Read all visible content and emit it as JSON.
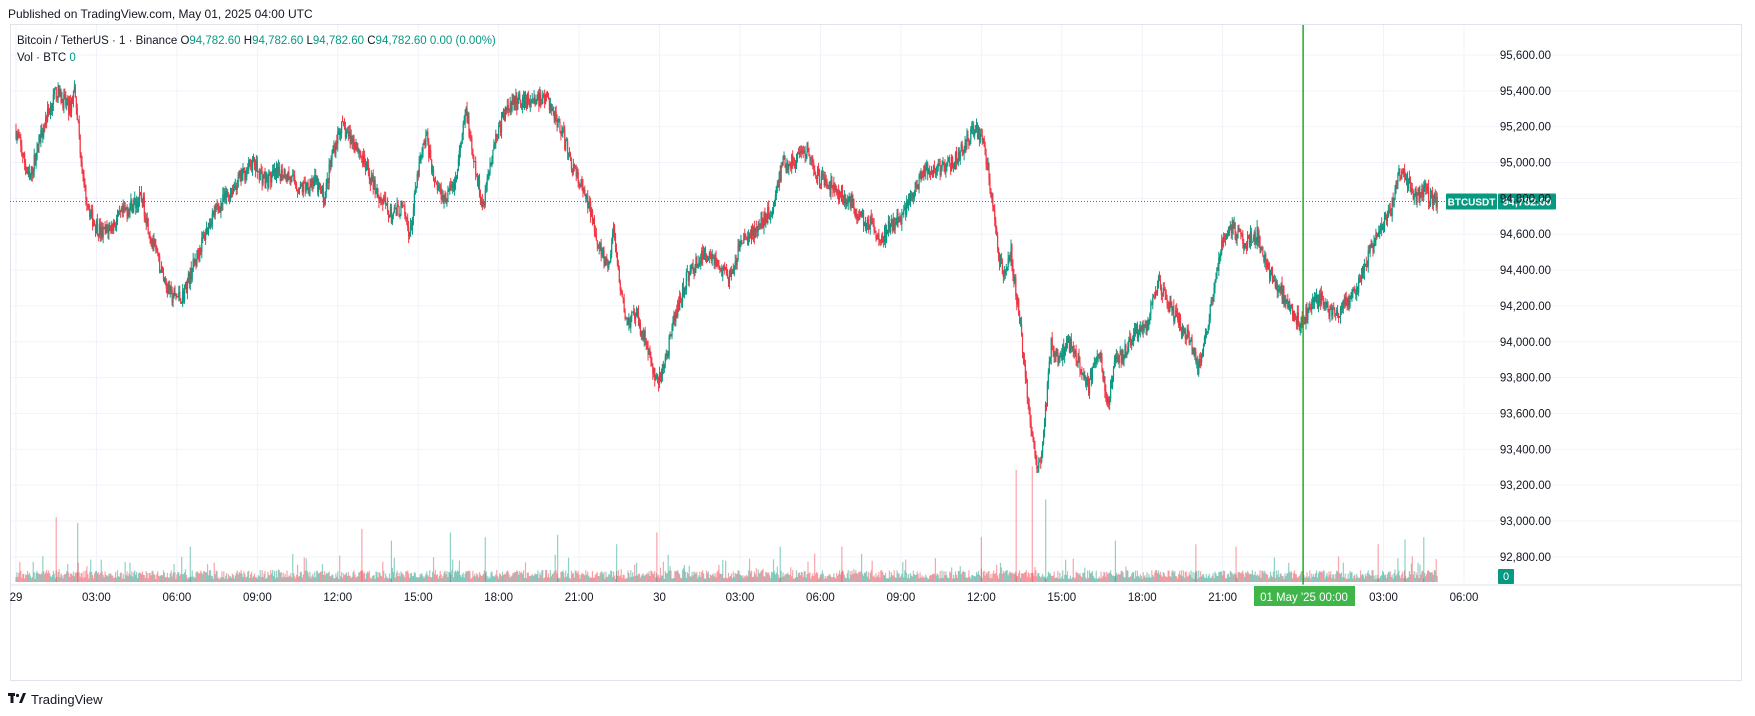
{
  "header": {
    "published": "Published on TradingView.com, May 01, 2025 04:00 UTC"
  },
  "legend": {
    "symbol": "Bitcoin / TetherUS · 1 · Binance",
    "o_label": "O",
    "o_value": "94,782.60",
    "h_label": "H",
    "h_value": "94,782.60",
    "l_label": "L",
    "l_value": "94,782.60",
    "c_label": "C",
    "c_value": "94,782.60",
    "change": "0.00 (0.00%)",
    "vol_label": "Vol · BTC",
    "vol_value": "0"
  },
  "price_tag": {
    "ticker": "BTCUSDT",
    "price": "94,782.60"
  },
  "volume_tag": "0",
  "date_marker": {
    "date": "01 May '25",
    "time": "00:00"
  },
  "footer": {
    "brand": "TradingView"
  },
  "colors": {
    "up": "#089981",
    "down": "#f23645",
    "grid": "#f0f3fa",
    "marker": "#22ab22"
  },
  "chart_data": {
    "type": "candlestick",
    "symbol": "BTCUSDT",
    "timeframe": "1",
    "ylim": [
      92650,
      95700
    ],
    "y_ticks": [
      95600,
      95400,
      95200,
      95000,
      94800,
      94600,
      94400,
      94200,
      94000,
      93800,
      93600,
      93400,
      93200,
      93000,
      92800
    ],
    "y_tick_labels": [
      "95,600.00",
      "95,400.00",
      "95,200.00",
      "95,000.00",
      "94,800.00",
      "94,600.00",
      "94,400.00",
      "94,200.00",
      "94,000.00",
      "93,800.00",
      "93,600.00",
      "93,400.00",
      "93,200.00",
      "93,000.00",
      "92,800.00"
    ],
    "x_ticks": [
      "29",
      "03:00",
      "06:00",
      "09:00",
      "12:00",
      "15:00",
      "18:00",
      "21:00",
      "30",
      "03:00",
      "06:00",
      "09:00",
      "12:00",
      "15:00",
      "18:00",
      "21:00",
      "03:00",
      "06:00"
    ],
    "x_tick_hours": [
      0,
      3,
      6,
      9,
      12,
      15,
      18,
      21,
      24,
      27,
      30,
      33,
      36,
      39,
      42,
      45,
      51,
      54
    ],
    "x_range_hours": [
      -0.05,
      55.0
    ],
    "last_price": 94782.6,
    "price_path": [
      [
        0.0,
        95180
      ],
      [
        0.5,
        94900
      ],
      [
        1.0,
        95200
      ],
      [
        1.5,
        95400
      ],
      [
        2.0,
        95300
      ],
      [
        2.2,
        95420
      ],
      [
        2.5,
        94900
      ],
      [
        2.8,
        94700
      ],
      [
        3.2,
        94600
      ],
      [
        3.6,
        94650
      ],
      [
        4.2,
        94750
      ],
      [
        4.7,
        94800
      ],
      [
        5.0,
        94600
      ],
      [
        5.4,
        94400
      ],
      [
        5.8,
        94250
      ],
      [
        6.2,
        94250
      ],
      [
        6.8,
        94500
      ],
      [
        7.3,
        94700
      ],
      [
        7.8,
        94800
      ],
      [
        8.3,
        94900
      ],
      [
        8.8,
        95000
      ],
      [
        9.3,
        94900
      ],
      [
        10.0,
        94950
      ],
      [
        10.6,
        94850
      ],
      [
        11.1,
        94900
      ],
      [
        11.5,
        94800
      ],
      [
        11.8,
        95050
      ],
      [
        12.1,
        95200
      ],
      [
        12.7,
        95100
      ],
      [
        13.1,
        94950
      ],
      [
        13.6,
        94800
      ],
      [
        14.0,
        94700
      ],
      [
        14.4,
        94750
      ],
      [
        14.7,
        94600
      ],
      [
        15.0,
        94950
      ],
      [
        15.3,
        95150
      ],
      [
        15.6,
        94900
      ],
      [
        16.0,
        94800
      ],
      [
        16.4,
        94900
      ],
      [
        16.8,
        95300
      ],
      [
        17.0,
        95050
      ],
      [
        17.4,
        94750
      ],
      [
        17.8,
        95100
      ],
      [
        18.3,
        95300
      ],
      [
        18.8,
        95350
      ],
      [
        19.3,
        95350
      ],
      [
        19.8,
        95350
      ],
      [
        20.3,
        95200
      ],
      [
        20.7,
        95000
      ],
      [
        21.1,
        94850
      ],
      [
        21.5,
        94700
      ],
      [
        21.8,
        94500
      ],
      [
        22.1,
        94400
      ],
      [
        22.3,
        94650
      ],
      [
        22.5,
        94300
      ],
      [
        22.8,
        94100
      ],
      [
        23.1,
        94150
      ],
      [
        23.5,
        94000
      ],
      [
        23.8,
        93800
      ],
      [
        24.0,
        93780
      ],
      [
        24.3,
        93950
      ],
      [
        24.6,
        94150
      ],
      [
        25.0,
        94350
      ],
      [
        25.4,
        94450
      ],
      [
        25.9,
        94500
      ],
      [
        26.3,
        94400
      ],
      [
        26.7,
        94350
      ],
      [
        27.0,
        94550
      ],
      [
        27.4,
        94600
      ],
      [
        27.8,
        94650
      ],
      [
        28.2,
        94750
      ],
      [
        28.6,
        95000
      ],
      [
        29.0,
        95000
      ],
      [
        29.5,
        95050
      ],
      [
        30.0,
        94900
      ],
      [
        30.5,
        94850
      ],
      [
        31.0,
        94800
      ],
      [
        31.5,
        94700
      ],
      [
        31.9,
        94650
      ],
      [
        32.2,
        94550
      ],
      [
        32.6,
        94650
      ],
      [
        33.0,
        94700
      ],
      [
        33.4,
        94800
      ],
      [
        33.8,
        94950
      ],
      [
        34.3,
        94950
      ],
      [
        34.9,
        95000
      ],
      [
        35.4,
        95100
      ],
      [
        35.8,
        95200
      ],
      [
        36.1,
        95100
      ],
      [
        36.3,
        94900
      ],
      [
        36.5,
        94650
      ],
      [
        36.8,
        94350
      ],
      [
        37.1,
        94500
      ],
      [
        37.4,
        94150
      ],
      [
        37.8,
        93600
      ],
      [
        38.1,
        93250
      ],
      [
        38.3,
        93450
      ],
      [
        38.6,
        94000
      ],
      [
        38.9,
        93900
      ],
      [
        39.2,
        94000
      ],
      [
        39.5,
        93950
      ],
      [
        40.0,
        93750
      ],
      [
        40.4,
        93950
      ],
      [
        40.7,
        93650
      ],
      [
        41.0,
        93900
      ],
      [
        41.4,
        93950
      ],
      [
        41.8,
        94050
      ],
      [
        42.2,
        94100
      ],
      [
        42.6,
        94350
      ],
      [
        43.0,
        94200
      ],
      [
        43.4,
        94100
      ],
      [
        43.8,
        94000
      ],
      [
        44.1,
        93850
      ],
      [
        44.5,
        94150
      ],
      [
        44.9,
        94500
      ],
      [
        45.3,
        94650
      ],
      [
        45.8,
        94550
      ],
      [
        46.3,
        94600
      ],
      [
        46.7,
        94400
      ],
      [
        47.1,
        94300
      ],
      [
        47.5,
        94200
      ],
      [
        47.9,
        94100
      ],
      [
        48.3,
        94200
      ],
      [
        48.7,
        94250
      ],
      [
        49.1,
        94150
      ],
      [
        49.5,
        94200
      ],
      [
        50.0,
        94300
      ],
      [
        50.5,
        94500
      ],
      [
        51.0,
        94650
      ],
      [
        51.3,
        94750
      ],
      [
        51.6,
        94950
      ],
      [
        51.9,
        94900
      ],
      [
        52.2,
        94800
      ],
      [
        52.5,
        94850
      ],
      [
        52.8,
        94800
      ],
      [
        53.0,
        94780
      ]
    ],
    "volume_spikes": [
      [
        1.5,
        0.55
      ],
      [
        2.3,
        0.5
      ],
      [
        6.5,
        0.3
      ],
      [
        12.9,
        0.45
      ],
      [
        14.0,
        0.35
      ],
      [
        16.2,
        0.42
      ],
      [
        17.5,
        0.38
      ],
      [
        20.2,
        0.4
      ],
      [
        22.4,
        0.32
      ],
      [
        23.9,
        0.42
      ],
      [
        28.5,
        0.3
      ],
      [
        30.8,
        0.3
      ],
      [
        36.0,
        0.38
      ],
      [
        37.3,
        0.95
      ],
      [
        37.9,
        0.98
      ],
      [
        38.4,
        0.7
      ],
      [
        41.0,
        0.35
      ],
      [
        44.0,
        0.32
      ],
      [
        45.5,
        0.3
      ],
      [
        50.8,
        0.32
      ],
      [
        51.8,
        0.36
      ],
      [
        52.5,
        0.38
      ]
    ]
  }
}
